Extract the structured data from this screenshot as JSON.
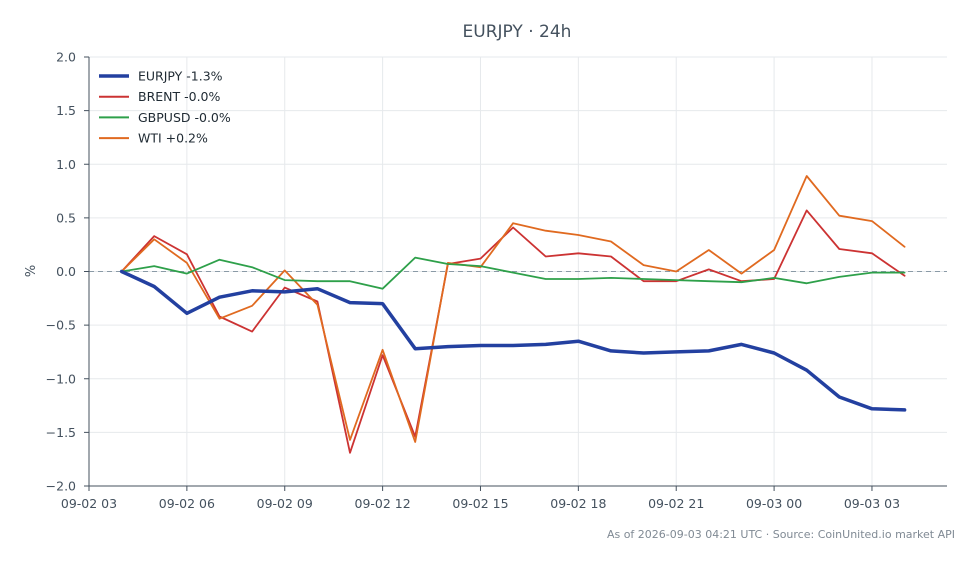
{
  "chart_data": {
    "type": "line",
    "title": "EURJPY · 24h",
    "xlabel": "",
    "ylabel": "%",
    "ylim": [
      -2.0,
      2.0
    ],
    "yticks": [
      "2.0",
      "1.5",
      "1.0",
      "0.5",
      "0.0",
      "−0.5",
      "−1.0",
      "−1.5",
      "−2.0"
    ],
    "ytick_values": [
      2.0,
      1.5,
      1.0,
      0.5,
      0.0,
      -0.5,
      -1.0,
      -1.5,
      -2.0
    ],
    "xlim": [
      0,
      26.3
    ],
    "xticks": [
      "09-02 03",
      "09-02 06",
      "09-02 09",
      "09-02 12",
      "09-02 15",
      "09-02 18",
      "09-02 21",
      "09-03 00",
      "09-03 03"
    ],
    "xtick_values": [
      0,
      3,
      6,
      9,
      12,
      15,
      18,
      21,
      24
    ],
    "x": [
      1,
      2,
      3,
      4,
      5,
      6,
      7,
      8,
      9,
      10,
      11,
      12,
      13,
      14,
      15,
      16,
      17,
      18,
      19,
      20,
      21,
      22,
      23,
      24,
      25
    ],
    "grid": true,
    "zero_line": true,
    "legend": "top-left",
    "series": [
      {
        "name": "EURJPY -1.3%",
        "color": "#2340a0",
        "values": [
          0.0,
          -0.14,
          -0.39,
          -0.24,
          -0.18,
          -0.19,
          -0.16,
          -0.29,
          -0.3,
          -0.72,
          -0.7,
          -0.69,
          -0.69,
          -0.68,
          -0.65,
          -0.74,
          -0.76,
          -0.75,
          -0.74,
          -0.68,
          -0.76,
          -0.92,
          -1.17,
          -1.28,
          -1.29
        ]
      },
      {
        "name": "BRENT -0.0%",
        "color": "#cc3333",
        "values": [
          0.0,
          0.33,
          0.16,
          -0.42,
          -0.56,
          -0.15,
          -0.28,
          -1.69,
          -0.78,
          -1.54,
          0.07,
          0.12,
          0.41,
          0.14,
          0.17,
          0.14,
          -0.09,
          -0.09,
          0.02,
          -0.09,
          -0.07,
          0.57,
          0.21,
          0.17,
          -0.04
        ]
      },
      {
        "name": "GBPUSD -0.0%",
        "color": "#2ea04a",
        "values": [
          0.0,
          0.05,
          -0.02,
          0.11,
          0.04,
          -0.08,
          -0.09,
          -0.09,
          -0.16,
          0.13,
          0.07,
          0.05,
          -0.01,
          -0.07,
          -0.07,
          -0.06,
          -0.07,
          -0.08,
          -0.09,
          -0.1,
          -0.06,
          -0.11,
          -0.05,
          -0.01,
          -0.01
        ]
      },
      {
        "name": "WTI +0.2%",
        "color": "#e06a20",
        "values": [
          0.0,
          0.3,
          0.08,
          -0.44,
          -0.32,
          0.01,
          -0.31,
          -1.57,
          -0.73,
          -1.59,
          0.08,
          0.04,
          0.45,
          0.38,
          0.34,
          0.28,
          0.06,
          0.0,
          0.2,
          -0.02,
          0.2,
          0.89,
          0.52,
          0.47,
          0.23
        ]
      }
    ],
    "source_note": "As of 2026-09-03 04:21 UTC · Source: CoinUnited.io market API"
  }
}
